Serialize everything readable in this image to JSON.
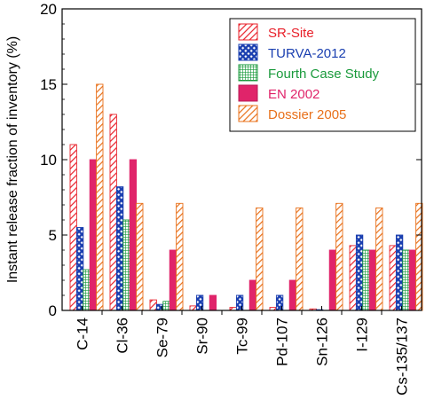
{
  "chart_data": {
    "type": "bar",
    "ylabel": "Instant release fraction of inventory (%)",
    "ylim": [
      0,
      20
    ],
    "yticks": [
      0,
      5,
      10,
      15,
      20
    ],
    "grid": false,
    "legend_position": "top-right",
    "categories": [
      "C-14",
      "Cl-36",
      "Se-79",
      "Sr-90",
      "Tc-99",
      "Pd-107",
      "Sn-126",
      "I-129",
      "Cs-135/137"
    ],
    "series": [
      {
        "name": "SR-Site",
        "color": "#e8202a",
        "pattern": "diagonal-stripes",
        "values": [
          11,
          13,
          0.7,
          0.3,
          0.2,
          0.2,
          0.1,
          4.3,
          4.3
        ]
      },
      {
        "name": "TURVA-2012",
        "color": "#1a3fb0",
        "pattern": "crosshatch",
        "values": [
          5.5,
          8.2,
          0.4,
          1,
          1,
          1,
          0.05,
          5,
          5
        ]
      },
      {
        "name": "Fourth Case Study",
        "color": "#1a9a3c",
        "pattern": "grid",
        "values": [
          2.7,
          6,
          0.6,
          0,
          0,
          0,
          0,
          4,
          4
        ]
      },
      {
        "name": "EN 2002",
        "color": "#e0246a",
        "pattern": "solid",
        "values": [
          10,
          10,
          4,
          1,
          2,
          2,
          4,
          4,
          4
        ]
      },
      {
        "name": "Dossier 2005",
        "color": "#e8701a",
        "pattern": "diagonal-stripes",
        "values": [
          15,
          7.1,
          7.1,
          0,
          6.8,
          6.8,
          7.1,
          6.8,
          7.1
        ]
      }
    ]
  }
}
